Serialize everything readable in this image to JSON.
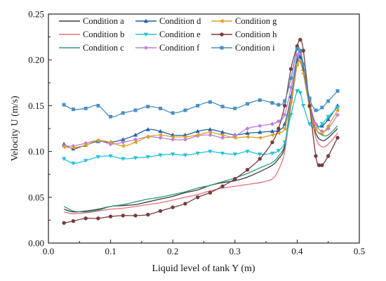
{
  "chart_data": {
    "type": "line",
    "xlabel": "Liquid level of tank Y (m)",
    "ylabel": "Velocity U (m/s)",
    "xlim": [
      0.0,
      0.5
    ],
    "ylim": [
      0.0,
      0.25
    ],
    "xticks": [
      "0.0",
      "0.1",
      "0.2",
      "0.3",
      "0.4",
      "0.5"
    ],
    "yticks": [
      "0.00",
      "0.05",
      "0.10",
      "0.15",
      "0.20",
      "0.25"
    ],
    "grid": false,
    "legend_position": "top",
    "series": [
      {
        "name": "Condition a",
        "color": "#3a3a3a",
        "marker": "none",
        "x": [
          0.025,
          0.04,
          0.06,
          0.08,
          0.1,
          0.12,
          0.14,
          0.16,
          0.18,
          0.2,
          0.22,
          0.24,
          0.26,
          0.28,
          0.3,
          0.32,
          0.34,
          0.36,
          0.37,
          0.38,
          0.39,
          0.4,
          0.405,
          0.41,
          0.42,
          0.43,
          0.44,
          0.45,
          0.465
        ],
        "y": [
          0.037,
          0.034,
          0.035,
          0.037,
          0.04,
          0.041,
          0.042,
          0.045,
          0.048,
          0.051,
          0.055,
          0.058,
          0.063,
          0.066,
          0.068,
          0.072,
          0.078,
          0.085,
          0.092,
          0.105,
          0.15,
          0.195,
          0.198,
          0.185,
          0.15,
          0.12,
          0.112,
          0.115,
          0.125
        ]
      },
      {
        "name": "Condition b",
        "color": "#e8707a",
        "marker": "none",
        "x": [
          0.025,
          0.04,
          0.06,
          0.08,
          0.1,
          0.12,
          0.14,
          0.16,
          0.18,
          0.2,
          0.22,
          0.24,
          0.26,
          0.28,
          0.3,
          0.32,
          0.34,
          0.36,
          0.37,
          0.38,
          0.39,
          0.4,
          0.405,
          0.41,
          0.42,
          0.43,
          0.44,
          0.45,
          0.465
        ],
        "y": [
          0.034,
          0.032,
          0.033,
          0.035,
          0.037,
          0.038,
          0.04,
          0.042,
          0.044,
          0.047,
          0.05,
          0.053,
          0.057,
          0.06,
          0.062,
          0.064,
          0.066,
          0.07,
          0.08,
          0.1,
          0.15,
          0.2,
          0.205,
          0.192,
          0.15,
          0.115,
          0.105,
          0.108,
          0.12
        ]
      },
      {
        "name": "Condition c",
        "color": "#2e9a7a",
        "marker": "none",
        "x": [
          0.025,
          0.04,
          0.06,
          0.08,
          0.1,
          0.12,
          0.14,
          0.16,
          0.18,
          0.2,
          0.22,
          0.24,
          0.26,
          0.28,
          0.3,
          0.32,
          0.34,
          0.36,
          0.37,
          0.38,
          0.39,
          0.4,
          0.405,
          0.41,
          0.42,
          0.43,
          0.44,
          0.45,
          0.465
        ],
        "y": [
          0.04,
          0.035,
          0.034,
          0.036,
          0.04,
          0.042,
          0.045,
          0.048,
          0.05,
          0.053,
          0.056,
          0.06,
          0.063,
          0.067,
          0.071,
          0.076,
          0.082,
          0.088,
          0.095,
          0.108,
          0.155,
          0.2,
          0.202,
          0.188,
          0.15,
          0.125,
          0.118,
          0.118,
          0.128
        ]
      },
      {
        "name": "Condition d",
        "color": "#1f5fa8",
        "marker": "triangle",
        "x": [
          0.025,
          0.04,
          0.06,
          0.08,
          0.1,
          0.12,
          0.14,
          0.16,
          0.18,
          0.2,
          0.22,
          0.24,
          0.26,
          0.28,
          0.3,
          0.32,
          0.34,
          0.36,
          0.37,
          0.38,
          0.39,
          0.4,
          0.405,
          0.41,
          0.42,
          0.43,
          0.44,
          0.45,
          0.465
        ],
        "y": [
          0.108,
          0.103,
          0.107,
          0.111,
          0.11,
          0.113,
          0.118,
          0.124,
          0.122,
          0.118,
          0.118,
          0.122,
          0.124,
          0.121,
          0.118,
          0.12,
          0.121,
          0.122,
          0.123,
          0.13,
          0.16,
          0.2,
          0.203,
          0.19,
          0.15,
          0.13,
          0.128,
          0.135,
          0.15
        ]
      },
      {
        "name": "Condition e",
        "color": "#1ec3d6",
        "marker": "triangle-down",
        "x": [
          0.025,
          0.04,
          0.06,
          0.08,
          0.1,
          0.12,
          0.14,
          0.16,
          0.18,
          0.2,
          0.22,
          0.24,
          0.26,
          0.28,
          0.3,
          0.32,
          0.34,
          0.36,
          0.37,
          0.38,
          0.39,
          0.4,
          0.405,
          0.41,
          0.42,
          0.43,
          0.44,
          0.45,
          0.465
        ],
        "y": [
          0.092,
          0.087,
          0.09,
          0.094,
          0.095,
          0.092,
          0.093,
          0.094,
          0.096,
          0.097,
          0.096,
          0.098,
          0.1,
          0.098,
          0.097,
          0.1,
          0.097,
          0.098,
          0.101,
          0.11,
          0.14,
          0.166,
          0.164,
          0.15,
          0.13,
          0.125,
          0.13,
          0.138,
          0.148
        ]
      },
      {
        "name": "Condition f",
        "color": "#c07ee0",
        "marker": "diamond",
        "x": [
          0.025,
          0.04,
          0.06,
          0.08,
          0.1,
          0.12,
          0.14,
          0.16,
          0.18,
          0.2,
          0.22,
          0.24,
          0.26,
          0.28,
          0.3,
          0.32,
          0.34,
          0.36,
          0.37,
          0.38,
          0.39,
          0.4,
          0.405,
          0.41,
          0.42,
          0.43,
          0.44,
          0.45,
          0.465
        ],
        "y": [
          0.106,
          0.106,
          0.109,
          0.112,
          0.108,
          0.11,
          0.113,
          0.116,
          0.115,
          0.113,
          0.113,
          0.117,
          0.118,
          0.115,
          0.117,
          0.125,
          0.128,
          0.13,
          0.133,
          0.14,
          0.17,
          0.205,
          0.207,
          0.195,
          0.155,
          0.13,
          0.122,
          0.125,
          0.14
        ]
      },
      {
        "name": "Condition g",
        "color": "#e0a020",
        "marker": "triangle-left",
        "x": [
          0.025,
          0.04,
          0.06,
          0.08,
          0.1,
          0.12,
          0.14,
          0.16,
          0.18,
          0.2,
          0.22,
          0.24,
          0.26,
          0.28,
          0.3,
          0.32,
          0.34,
          0.36,
          0.37,
          0.38,
          0.39,
          0.4,
          0.405,
          0.41,
          0.42,
          0.43,
          0.44,
          0.45,
          0.465
        ],
        "y": [
          0.105,
          0.104,
          0.107,
          0.112,
          0.11,
          0.106,
          0.11,
          0.116,
          0.118,
          0.116,
          0.116,
          0.118,
          0.121,
          0.118,
          0.115,
          0.116,
          0.115,
          0.118,
          0.12,
          0.125,
          0.155,
          0.195,
          0.198,
          0.185,
          0.148,
          0.125,
          0.12,
          0.128,
          0.145
        ]
      },
      {
        "name": "Condition h",
        "color": "#7a3a3a",
        "marker": "circle",
        "x": [
          0.025,
          0.04,
          0.06,
          0.08,
          0.1,
          0.12,
          0.14,
          0.16,
          0.18,
          0.2,
          0.22,
          0.24,
          0.26,
          0.28,
          0.3,
          0.32,
          0.34,
          0.36,
          0.37,
          0.38,
          0.39,
          0.4,
          0.405,
          0.41,
          0.42,
          0.43,
          0.435,
          0.44,
          0.45,
          0.465
        ],
        "y": [
          0.022,
          0.024,
          0.027,
          0.027,
          0.029,
          0.03,
          0.03,
          0.031,
          0.035,
          0.039,
          0.043,
          0.05,
          0.055,
          0.062,
          0.07,
          0.08,
          0.092,
          0.11,
          0.125,
          0.15,
          0.19,
          0.215,
          0.222,
          0.21,
          0.15,
          0.095,
          0.085,
          0.085,
          0.095,
          0.115
        ]
      },
      {
        "name": "Condition i",
        "color": "#4a8fc4",
        "marker": "square",
        "x": [
          0.025,
          0.04,
          0.06,
          0.08,
          0.1,
          0.12,
          0.14,
          0.16,
          0.18,
          0.2,
          0.22,
          0.24,
          0.26,
          0.28,
          0.3,
          0.32,
          0.34,
          0.36,
          0.37,
          0.38,
          0.39,
          0.4,
          0.405,
          0.41,
          0.42,
          0.43,
          0.44,
          0.45,
          0.465
        ],
        "y": [
          0.151,
          0.146,
          0.147,
          0.15,
          0.138,
          0.142,
          0.145,
          0.149,
          0.147,
          0.142,
          0.145,
          0.15,
          0.154,
          0.149,
          0.147,
          0.152,
          0.156,
          0.153,
          0.151,
          0.155,
          0.18,
          0.212,
          0.21,
          0.195,
          0.158,
          0.145,
          0.148,
          0.155,
          0.166
        ]
      }
    ]
  }
}
